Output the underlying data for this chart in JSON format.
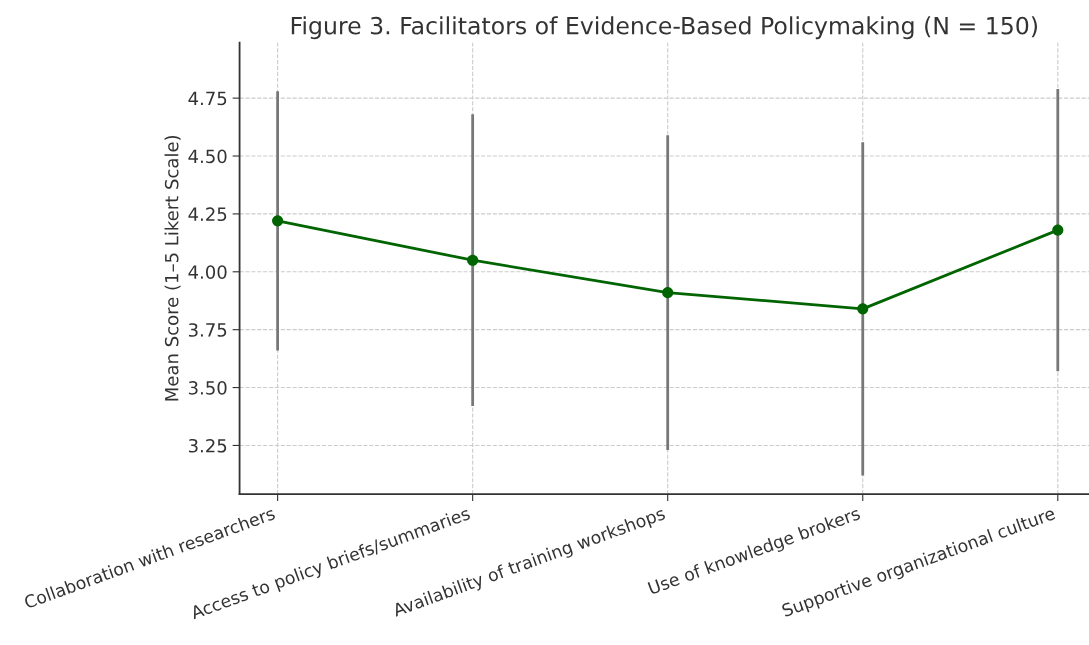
{
  "chart_data": {
    "type": "line",
    "title": "Figure 3. Facilitators of Evidence-Based Policymaking (N = 150)",
    "ylabel": "Mean Score (1–5 Likert Scale)",
    "categories": [
      "Collaboration with researchers",
      "Access to policy briefs/summaries",
      "Availability of training workshops",
      "Use of knowledge brokers",
      "Supportive organizational culture"
    ],
    "values": [
      4.22,
      4.05,
      3.91,
      3.84,
      4.18
    ],
    "errors": [
      0.56,
      0.63,
      0.68,
      0.72,
      0.61
    ],
    "color": "#006400",
    "marker": "circle",
    "line_style": "solid",
    "grid": true,
    "ylim": [
      3.04,
      4.99
    ],
    "yticks": [
      {
        "value": 3.25,
        "label": "3.25"
      },
      {
        "value": 3.5,
        "label": "3.50"
      },
      {
        "value": 3.75,
        "label": "3.75"
      },
      {
        "value": 4.0,
        "label": "4.00"
      },
      {
        "value": 4.25,
        "label": "4.25"
      },
      {
        "value": 4.5,
        "label": "4.50"
      },
      {
        "value": 4.75,
        "label": "4.75"
      }
    ]
  }
}
